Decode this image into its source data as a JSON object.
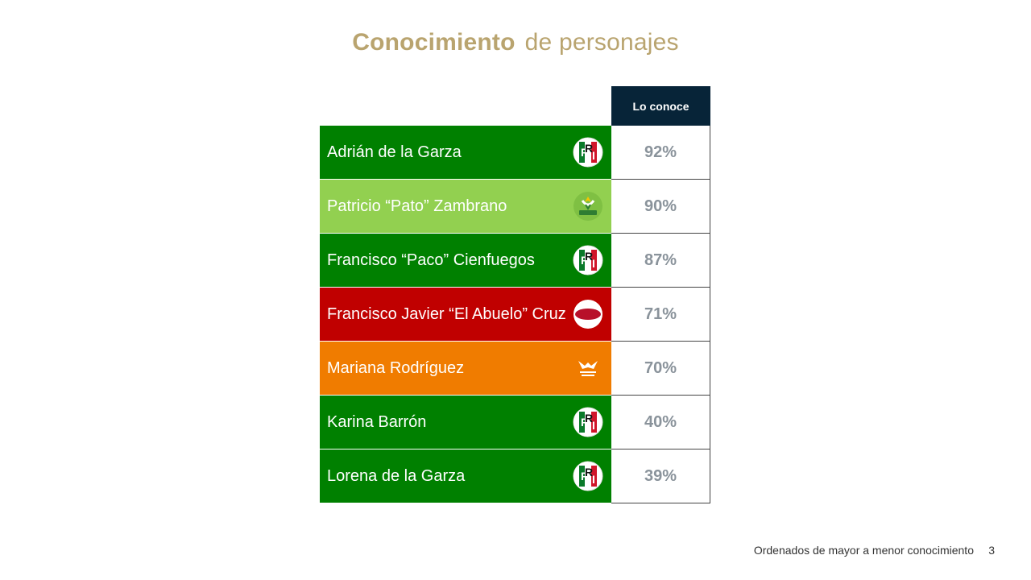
{
  "title": {
    "bold": "Conocimiento",
    "rest": "de personajes"
  },
  "table": {
    "header": "Lo conoce",
    "rows": [
      {
        "name": "Adrián de la Garza",
        "value": "92%",
        "party": "PRI",
        "party_icon": "pri-logo-icon",
        "color": "#008000"
      },
      {
        "name": "Patricio “Pato” Zambrano",
        "value": "90%",
        "party": "VERDE",
        "party_icon": "verde-logo-icon",
        "color": "#92d050"
      },
      {
        "name": "Francisco “Paco” Cienfuegos",
        "value": "87%",
        "party": "PRI",
        "party_icon": "pri-logo-icon",
        "color": "#008000"
      },
      {
        "name": "Francisco Javier “El Abuelo” Cruz",
        "value": "71%",
        "party": "morena",
        "party_icon": "morena-logo-icon",
        "color": "#c00000"
      },
      {
        "name": "Mariana Rodríguez",
        "value": "70%",
        "party": "MOVIMIENTO CIUDADANO",
        "party_icon": "movimiento-ciudadano-logo-icon",
        "color": "#f07c00"
      },
      {
        "name": "Karina Barrón",
        "value": "40%",
        "party": "PRI",
        "party_icon": "pri-logo-icon",
        "color": "#008000"
      },
      {
        "name": "Lorena de la Garza",
        "value": "39%",
        "party": "PRI",
        "party_icon": "pri-logo-icon",
        "color": "#008000"
      }
    ]
  },
  "footer": {
    "note": "Ordenados de mayor a menor conocimiento",
    "page": "3"
  },
  "colors": {
    "title": "#b9a46f",
    "header_bg": "#072438",
    "value_text": "#8a939b"
  }
}
